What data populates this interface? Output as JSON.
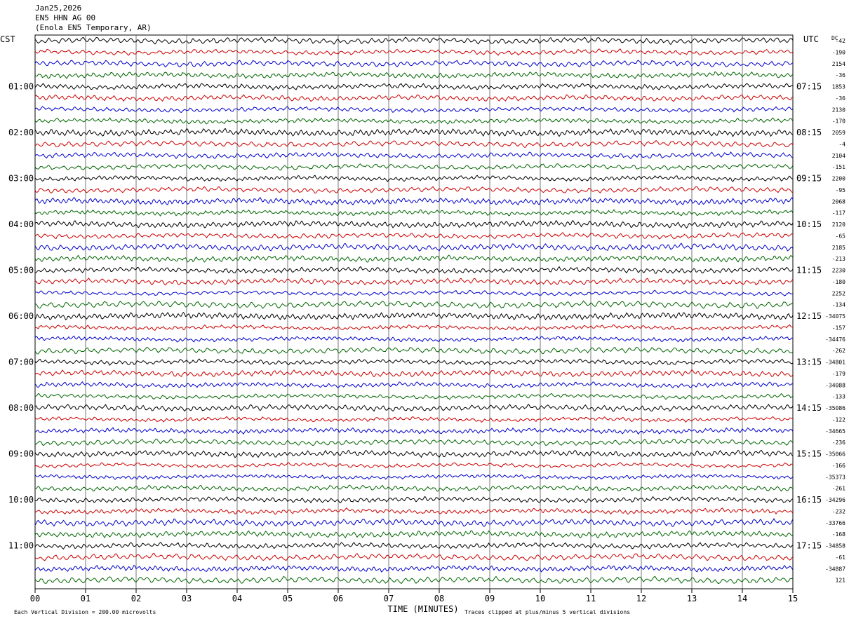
{
  "header": {
    "date": "Jan25,2026",
    "station": "EN5 HHN AG 00",
    "location": "(Enola EN5 Temporary, AR)"
  },
  "chart_data": {
    "type": "line",
    "left_tz": "CST",
    "right_tz": "UTC",
    "dc_label": "DC",
    "xlabel": "TIME (MINUTES)",
    "xlim": [
      0,
      15
    ],
    "x_ticks": [
      "00",
      "01",
      "02",
      "03",
      "04",
      "05",
      "06",
      "07",
      "08",
      "09",
      "10",
      "11",
      "12",
      "13",
      "14",
      "15"
    ],
    "left_hour_labels": [
      "01:00",
      "02:00",
      "03:00",
      "04:00",
      "05:00",
      "06:00",
      "07:00",
      "08:00",
      "09:00",
      "10:00",
      "11:00"
    ],
    "right_hour_labels": [
      "07:15",
      "08:15",
      "09:15",
      "10:15",
      "11:15",
      "12:15",
      "13:15",
      "14:15",
      "15:15",
      "16:15",
      "17:15"
    ],
    "trace_colors": [
      "#000000",
      "#cc0000",
      "#0000cc",
      "#006600"
    ],
    "dc_offsets": [
      "-42",
      "-190",
      "2154",
      "-36",
      "1853",
      "-36",
      "2130",
      "-170",
      "2059",
      "-4",
      "2104",
      "-151",
      "2200",
      "-95",
      "2068",
      "-117",
      "2120",
      "-65",
      "2185",
      "-213",
      "2230",
      "-180",
      "2252",
      "-134",
      "-34075",
      "-157",
      "-34476",
      "-262",
      "-34801",
      "-179",
      "-34088",
      "-133",
      "-35086",
      "-122",
      "-34665",
      "-236",
      "-35066",
      "-166",
      "-35373",
      "-261",
      "-34296",
      "-232",
      "-33766",
      "-168",
      "-34858",
      "-61",
      "-34887",
      "121"
    ],
    "footer_left": "Each Vertical Division =  200.00 microvolts",
    "footer_right": "Traces clipped at plus/minus 5 vertical divisions"
  }
}
